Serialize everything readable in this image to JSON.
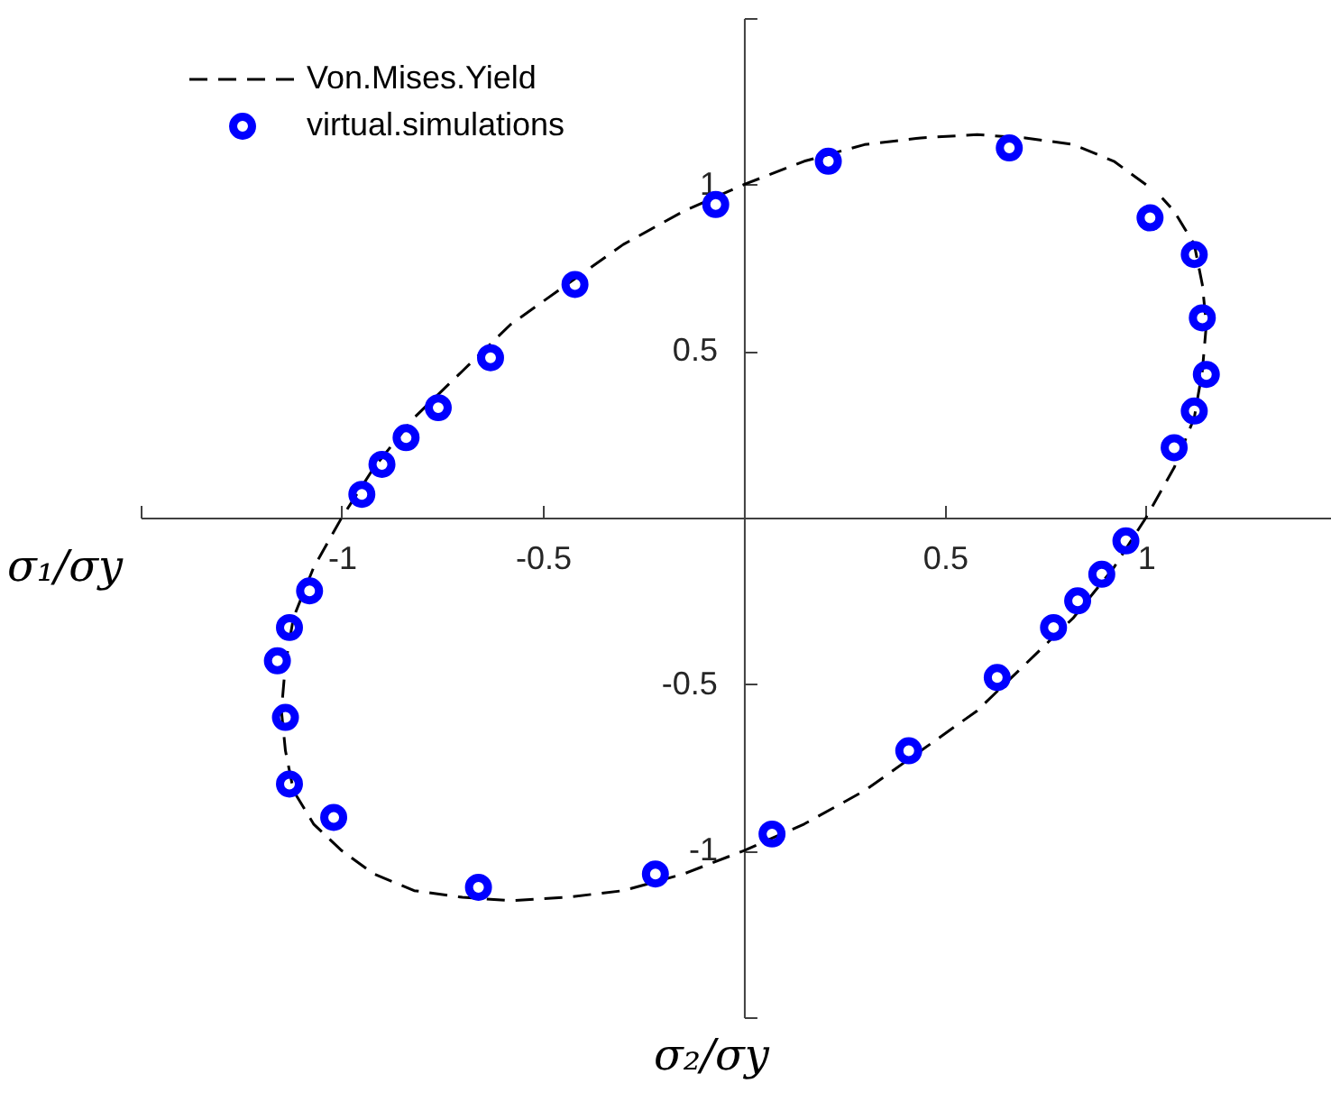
{
  "chart_data": {
    "type": "line",
    "xlabel": "σ₂/σy",
    "ylabel": "σ₁/σy",
    "xlim": [
      -1.5,
      1.46
    ],
    "ylim": [
      -1.5,
      1.5
    ],
    "xticks": [
      {
        "value": -1.5,
        "label": null
      },
      -1,
      -0.5,
      0.5,
      1
    ],
    "yticks": [
      {
        "value": -1.5,
        "label": null
      },
      -1,
      -0.5,
      0.5,
      1,
      {
        "value": 1.5,
        "label": null
      }
    ],
    "grid": false,
    "legend": "top left",
    "series": [
      {
        "name": "Von.Mises.Yield",
        "color": "#000000",
        "line_style": "dashed",
        "marker": "none",
        "x": [
          1,
          0.92,
          0.82,
          0.7,
          0.58,
          0.44,
          0.3,
          0.15,
          0,
          -0.15,
          -0.3,
          -0.44,
          -0.58,
          -0.7,
          -0.82,
          -0.92,
          -1,
          -1.07,
          -1.12,
          -1.14,
          -1.15,
          -1.14,
          -1.12,
          -1.07,
          -1,
          -0.92,
          -0.82,
          -0.7,
          -0.58,
          -0.44,
          -0.3,
          -0.15,
          0,
          0.15,
          0.3,
          0.44,
          0.58,
          0.7,
          0.82,
          0.92,
          1,
          1.07,
          1.12,
          1.14,
          1.15,
          1.14,
          1.12,
          1.07,
          1.04
        ],
        "values": [
          1,
          1.07,
          1.12,
          1.14,
          1.15,
          1.14,
          1.12,
          1.07,
          1,
          0.92,
          0.82,
          0.7,
          0.58,
          0.44,
          0.3,
          0.15,
          0,
          -0.15,
          -0.3,
          -0.44,
          -0.58,
          -0.7,
          -0.82,
          -0.92,
          -1,
          -1.07,
          -1.12,
          -1.14,
          -1.15,
          -1.14,
          -1.12,
          -1.07,
          -1,
          -0.92,
          -0.82,
          -0.7,
          -0.58,
          -0.44,
          -0.3,
          -0.15,
          0,
          0.15,
          0.3,
          0.44,
          0.58,
          0.7,
          0.82,
          0.92,
          0.96
        ]
      },
      {
        "name": "virtual.simulations",
        "type": "scatter",
        "color": "#0000ff",
        "marker": "circle",
        "x": [
          0.21,
          0.66,
          1.01,
          1.12,
          1.14,
          1.15,
          1.12,
          1.07,
          0.95,
          0.89,
          0.83,
          0.77,
          0.63,
          0.41,
          0.07,
          -0.22,
          -0.66,
          -1.02,
          -1.13,
          -1.14,
          -1.16,
          -1.13,
          -1.08,
          -0.95,
          -0.9,
          -0.84,
          -0.76,
          -0.63,
          -0.42,
          -0.07
        ],
        "values": [
          1.07,
          1.11,
          0.9,
          0.79,
          0.6,
          0.43,
          0.32,
          0.21,
          -0.07,
          -0.17,
          -0.25,
          -0.33,
          -0.48,
          -0.7,
          -0.95,
          -1.07,
          -1.11,
          -0.9,
          -0.8,
          -0.6,
          -0.43,
          -0.33,
          -0.22,
          0.07,
          0.16,
          0.24,
          0.33,
          0.48,
          0.7,
          0.94
        ]
      }
    ]
  }
}
